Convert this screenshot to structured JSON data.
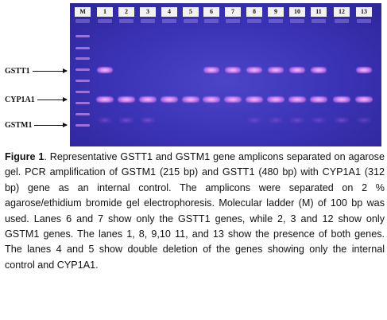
{
  "gel": {
    "lanes": [
      "M",
      "1",
      "2",
      "3",
      "4",
      "5",
      "6",
      "7",
      "8",
      "9",
      "10",
      "11",
      "12",
      "13"
    ],
    "row_labels": [
      "GSTT1",
      "CYP1A1",
      "GSTM1"
    ],
    "bands": {
      "GSTT1": [
        false,
        true,
        false,
        false,
        false,
        false,
        true,
        true,
        true,
        true,
        true,
        true,
        false,
        true
      ],
      "CYP1A1": [
        false,
        true,
        true,
        true,
        true,
        true,
        true,
        true,
        true,
        true,
        true,
        true,
        true,
        true
      ],
      "GSTM1": [
        false,
        true,
        true,
        true,
        false,
        false,
        false,
        false,
        true,
        true,
        true,
        true,
        true,
        true
      ]
    },
    "band_strength": {
      "GSTT1": [
        0,
        1,
        0,
        0,
        0,
        0,
        1,
        1,
        1,
        1,
        1,
        1,
        0,
        1
      ],
      "CYP1A1": [
        0,
        1,
        1,
        1,
        1,
        1,
        1,
        1,
        1,
        1,
        1,
        1,
        1,
        1
      ],
      "GSTM1": [
        0,
        0.5,
        0.6,
        0.6,
        0,
        0,
        0,
        0,
        0.4,
        0.4,
        0.5,
        0.5,
        0.6,
        0.4
      ]
    }
  },
  "caption": {
    "label": "Figure 1",
    "text": ". Representative GSTT1 and GSTM1 gene amplicons separated on agarose gel. PCR amplification of GSTM1 (215 bp) and GSTT1 (480 bp) with CYP1A1 (312 bp) gene as an internal control. The amplicons were separated on 2 % agarose/ethidium bromide gel electrophoresis. Molecular ladder (M) of 100 bp was used. Lanes 6 and 7 show only the GSTT1 genes, while 2, 3 and 12 show only GSTM1 genes. The lanes 1, 8, 9,10 11, and 13 show the presence of both genes. The lanes 4 and 5 show double deletion of the genes showing only the internal control and CYP1A1."
  },
  "colors": {
    "gel_background": "#3a32b4",
    "band": "#cf7df0",
    "label_box": "#f2f2f2"
  }
}
